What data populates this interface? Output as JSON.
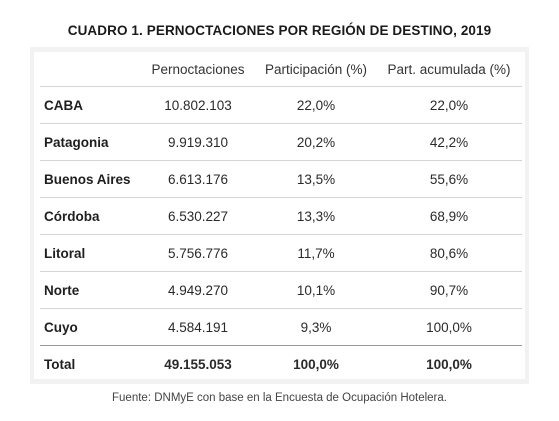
{
  "title": "CUADRO 1. PERNOCTACIONES POR REGIÓN DE DESTINO, 2019",
  "columns": [
    "",
    "Pernoctaciones",
    "Participación (%)",
    "Part. acumulada (%)"
  ],
  "rows": [
    {
      "region": "CABA",
      "pernoctaciones": "10.802.103",
      "participacion": "22,0%",
      "acumulada": "22,0%"
    },
    {
      "region": "Patagonia",
      "pernoctaciones": "9.919.310",
      "participacion": "20,2%",
      "acumulada": "42,2%"
    },
    {
      "region": "Buenos Aires",
      "pernoctaciones": "6.613.176",
      "participacion": "13,5%",
      "acumulada": "55,6%"
    },
    {
      "region": "Córdoba",
      "pernoctaciones": "6.530.227",
      "participacion": "13,3%",
      "acumulada": "68,9%"
    },
    {
      "region": "Litoral",
      "pernoctaciones": "5.756.776",
      "participacion": "11,7%",
      "acumulada": "80,6%"
    },
    {
      "region": "Norte",
      "pernoctaciones": "4.949.270",
      "participacion": "10,1%",
      "acumulada": "90,7%"
    },
    {
      "region": "Cuyo",
      "pernoctaciones": "4.584.191",
      "participacion": "9,3%",
      "acumulada": "100,0%"
    }
  ],
  "total": {
    "region": "Total",
    "pernoctaciones": "49.155.053",
    "participacion": "100,0%",
    "acumulada": "100,0%"
  },
  "source": "Fuente: DNMyE con base en la Encuesta de Ocupación Hotelera.",
  "chart_data": {
    "type": "table",
    "title": "CUADRO 1. PERNOCTACIONES POR REGIÓN DE DESTINO, 2019",
    "columns": [
      "Pernoctaciones",
      "Participación (%)",
      "Part. acumulada (%)"
    ],
    "categories": [
      "CABA",
      "Patagonia",
      "Buenos Aires",
      "Córdoba",
      "Litoral",
      "Norte",
      "Cuyo",
      "Total"
    ],
    "series": [
      {
        "name": "Pernoctaciones",
        "values": [
          10802103,
          9919310,
          6613176,
          6530227,
          5756776,
          4949270,
          4584191,
          49155053
        ]
      },
      {
        "name": "Participación (%)",
        "values": [
          22.0,
          20.2,
          13.5,
          13.3,
          11.7,
          10.1,
          9.3,
          100.0
        ]
      },
      {
        "name": "Part. acumulada (%)",
        "values": [
          22.0,
          42.2,
          55.6,
          68.9,
          80.6,
          90.7,
          100.0,
          100.0
        ]
      }
    ]
  }
}
